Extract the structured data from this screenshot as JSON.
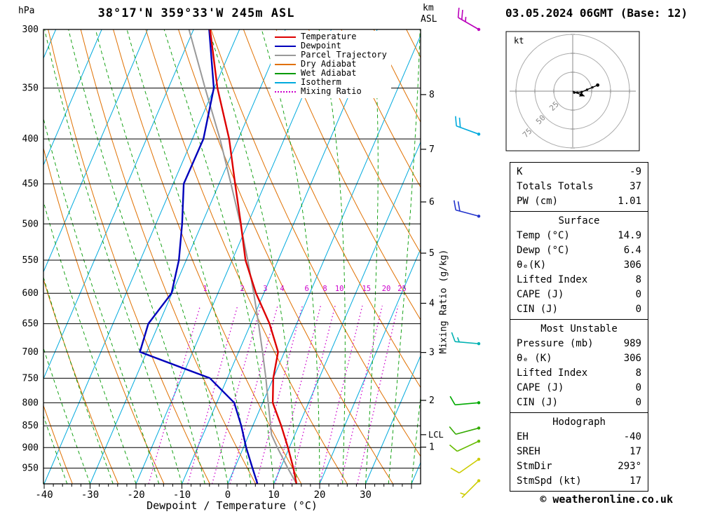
{
  "header": {
    "station": "38°17'N 359°33'W 245m ASL",
    "datetime": "03.05.2024 06GMT (Base: 12)",
    "pressure_unit": "hPa"
  },
  "footer": {
    "copyright": "© weatheronline.co.uk"
  },
  "legend": {
    "items": [
      {
        "label": "Temperature",
        "color": "#dd0000",
        "style": "solid"
      },
      {
        "label": "Dewpoint",
        "color": "#0000bb",
        "style": "solid"
      },
      {
        "label": "Parcel Trajectory",
        "color": "#999999",
        "style": "solid"
      },
      {
        "label": "Dry Adiabat",
        "color": "#e07000",
        "style": "solid"
      },
      {
        "label": "Wet Adiabat",
        "color": "#009900",
        "style": "solid"
      },
      {
        "label": "Isotherm",
        "color": "#00aadd",
        "style": "solid"
      },
      {
        "label": "Mixing Ratio",
        "color": "#cc00cc",
        "style": "dotted"
      }
    ]
  },
  "axes": {
    "pressure_ticks": [
      300,
      350,
      400,
      450,
      500,
      550,
      600,
      650,
      700,
      750,
      800,
      850,
      900,
      950
    ],
    "temp_ticks": [
      -40,
      -30,
      -20,
      -10,
      0,
      10,
      20,
      30
    ],
    "xlabel": "Dewpoint / Temperature (°C)",
    "right_label": "Mixing Ratio (g/kg)",
    "km_unit": "km",
    "km_unit2": "ASL",
    "km_ticks": [
      8,
      7,
      6,
      5,
      4,
      3,
      2,
      1
    ],
    "lcl_label": "LCL"
  },
  "chart_data": {
    "type": "skewt-log-p",
    "pressure_range_hpa": [
      300,
      990
    ],
    "isotherm_step_c": 10,
    "dry_adiabat_step_k": 10,
    "wet_adiabat_step_c": 5,
    "mixing_ratio_lines": [
      1,
      2,
      3,
      4,
      6,
      8,
      10,
      15,
      20,
      25
    ],
    "lcl_pressure_hpa": 870,
    "sounding": {
      "pressure": [
        989,
        950,
        900,
        850,
        800,
        750,
        700,
        650,
        600,
        550,
        500,
        450,
        400,
        350,
        300
      ],
      "temperature": [
        14.9,
        12.8,
        9.7,
        6.2,
        2.2,
        0.0,
        -1.4,
        -5.9,
        -11.7,
        -17.1,
        -21.5,
        -26.5,
        -32.0,
        -39.3,
        -46.4
      ],
      "dewpoint": [
        6.4,
        3.9,
        0.6,
        -2.5,
        -6.2,
        -13.8,
        -31.5,
        -32.3,
        -30.1,
        -31.6,
        -34.3,
        -37.7,
        -37.6,
        -40.1,
        -46.6
      ]
    },
    "parcel": {
      "pressure": [
        989,
        950,
        900,
        870,
        850,
        800,
        750,
        700,
        650,
        600,
        550,
        500,
        450,
        400,
        350,
        300
      ],
      "temperature": [
        14.9,
        11.6,
        7.4,
        4.9,
        3.9,
        1.2,
        -1.6,
        -4.8,
        -8.3,
        -12.2,
        -16.6,
        -21.6,
        -27.4,
        -34.0,
        -42.0,
        -51.0
      ]
    },
    "wind_barbs": [
      {
        "pressure": 300,
        "dir_deg": 300,
        "speed_kt": 25,
        "color": "#bb00bb"
      },
      {
        "pressure": 395,
        "dir_deg": 290,
        "speed_kt": 20,
        "color": "#00aadd"
      },
      {
        "pressure": 490,
        "dir_deg": 285,
        "speed_kt": 20,
        "color": "#2233cc"
      },
      {
        "pressure": 685,
        "dir_deg": 275,
        "speed_kt": 15,
        "color": "#00b2b2"
      },
      {
        "pressure": 800,
        "dir_deg": 265,
        "speed_kt": 10,
        "color": "#00aa00"
      },
      {
        "pressure": 855,
        "dir_deg": 255,
        "speed_kt": 10,
        "color": "#33aa00"
      },
      {
        "pressure": 885,
        "dir_deg": 245,
        "speed_kt": 10,
        "color": "#66bb00"
      },
      {
        "pressure": 928,
        "dir_deg": 235,
        "speed_kt": 10,
        "color": "#cccc00"
      },
      {
        "pressure": 982,
        "dir_deg": 225,
        "speed_kt": 5,
        "color": "#cccc00"
      }
    ],
    "hodograph": {
      "unit_label": "kt",
      "rings_kt": [
        25,
        50,
        75
      ],
      "trace_u_kt": [
        2,
        6,
        12,
        19,
        26,
        33
      ],
      "trace_v_kt": [
        -2,
        -2,
        -1,
        2,
        5,
        8
      ],
      "storm_motion": {
        "dir_deg": 293,
        "speed_kt": 17
      }
    }
  },
  "stats": {
    "panels": [
      {
        "id": "indices",
        "rows": [
          [
            "K",
            "-9"
          ],
          [
            "Totals Totals",
            "37"
          ],
          [
            "PW (cm)",
            "1.01"
          ]
        ]
      },
      {
        "id": "surface",
        "title": "Surface",
        "rows": [
          [
            "Temp (°C)",
            "14.9"
          ],
          [
            "Dewp (°C)",
            "6.4"
          ],
          [
            "θₑ(K)",
            "306"
          ],
          [
            "Lifted Index",
            "8"
          ],
          [
            "CAPE (J)",
            "0"
          ],
          [
            "CIN (J)",
            "0"
          ]
        ]
      },
      {
        "id": "most-unstable",
        "title": "Most Unstable",
        "rows": [
          [
            "Pressure (mb)",
            "989"
          ],
          [
            "θₑ (K)",
            "306"
          ],
          [
            "Lifted Index",
            "8"
          ],
          [
            "CAPE (J)",
            "0"
          ],
          [
            "CIN (J)",
            "0"
          ]
        ]
      },
      {
        "id": "hodograph",
        "title": "Hodograph",
        "rows": [
          [
            "EH",
            "-40"
          ],
          [
            "SREH",
            "17"
          ],
          [
            "StmDir",
            "293°"
          ],
          [
            "StmSpd (kt)",
            "17"
          ]
        ]
      }
    ]
  }
}
